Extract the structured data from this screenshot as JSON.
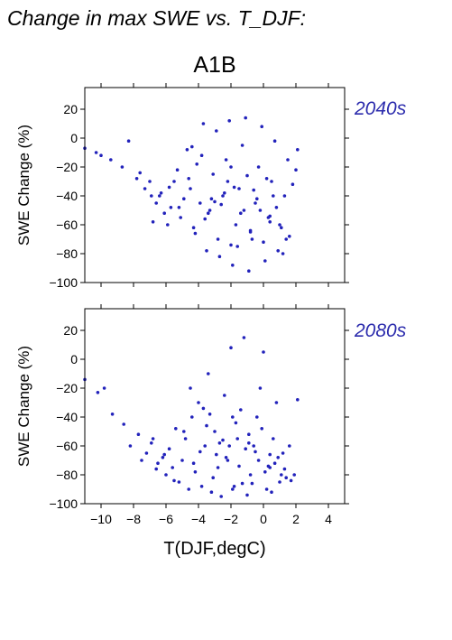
{
  "figure": {
    "title": "Change in max SWE vs. T_DJF:",
    "scenario": "A1B"
  },
  "colors": {
    "points": "#2222bb",
    "period_label": "#2c2cad",
    "axes": "#000000"
  },
  "chart_data": [
    {
      "type": "scatter",
      "period": "2040s",
      "xlabel": "",
      "ylabel": "SWE Change (%)",
      "xlim": [
        -11,
        5
      ],
      "ylim": [
        -100,
        35
      ],
      "yticks": [
        -100,
        -80,
        -60,
        -40,
        -20,
        0,
        20
      ],
      "yticklabels": [
        "−100",
        "−80",
        "−60",
        "−40",
        "−20",
        "0",
        "20"
      ],
      "xticks": [
        -10,
        -8,
        -6,
        -4,
        -2,
        0,
        2,
        4
      ],
      "xticklabels": [],
      "grid": false,
      "x": [
        -11.0,
        -10.3,
        -10.0,
        -9.4,
        -8.7,
        -8.3,
        -7.8,
        -7.3,
        -6.9,
        -6.6,
        -6.3,
        -6.1,
        -5.9,
        -5.7,
        -5.5,
        -5.3,
        -5.1,
        -4.9,
        -4.7,
        -4.5,
        -4.3,
        -4.1,
        -3.9,
        -3.7,
        -3.5,
        -3.3,
        -3.1,
        -2.9,
        -2.7,
        -2.5,
        -2.3,
        -2.1,
        -1.9,
        -1.7,
        -1.5,
        -1.3,
        -1.1,
        -0.9,
        -0.7,
        -0.5,
        -0.3,
        -0.1,
        0.1,
        0.3,
        0.5,
        0.7,
        0.9,
        1.1,
        1.3,
        1.5,
        1.8,
        2.1,
        -7.6,
        -7.0,
        -6.8,
        -6.4,
        -5.8,
        -5.2,
        -4.6,
        -4.2,
        -3.8,
        -3.4,
        -2.8,
        -2.4,
        -2.0,
        -1.6,
        -1.2,
        -0.8,
        -0.4,
        0.0,
        0.4,
        0.8,
        1.2,
        1.6,
        2.0,
        -3.6,
        -3.0,
        -2.2,
        -1.4,
        -0.6,
        0.2,
        1.0,
        -2.6,
        -1.8,
        -1.0,
        -0.2,
        0.6,
        1.4,
        -4.4,
        -3.2,
        -2.0,
        -0.8,
        0.4
      ],
      "y": [
        -7,
        -10,
        -12,
        -15,
        -20,
        -2,
        -28,
        -35,
        -40,
        -45,
        -38,
        -52,
        -60,
        -48,
        -30,
        -22,
        -55,
        -42,
        -8,
        -35,
        -62,
        -18,
        -45,
        10,
        -78,
        -50,
        -25,
        5,
        -82,
        -40,
        -15,
        12,
        -88,
        -60,
        -35,
        -5,
        14,
        -92,
        -70,
        -45,
        -20,
        8,
        -85,
        -55,
        -30,
        -2,
        -78,
        -62,
        -40,
        -15,
        -32,
        -8,
        -24,
        -30,
        -58,
        -40,
        -34,
        -48,
        -28,
        -66,
        -12,
        -52,
        -70,
        -38,
        -20,
        -75,
        -50,
        -65,
        -42,
        -72,
        -58,
        -48,
        -80,
        -68,
        -22,
        -56,
        -44,
        -30,
        -52,
        -36,
        -28,
        -60,
        -46,
        -34,
        -26,
        -50,
        -40,
        -70,
        -6,
        -42,
        -74,
        -64,
        -54
      ],
      "series": []
    },
    {
      "type": "scatter",
      "period": "2080s",
      "xlabel": "T(DJF,degC)",
      "ylabel": "SWE Change (%)",
      "xlim": [
        -11,
        5
      ],
      "ylim": [
        -100,
        35
      ],
      "yticks": [
        -100,
        -80,
        -60,
        -40,
        -20,
        0,
        20
      ],
      "yticklabels": [
        "−100",
        "−80",
        "−60",
        "−40",
        "−20",
        "0",
        "20"
      ],
      "xticks": [
        -10,
        -8,
        -6,
        -4,
        -2,
        0,
        2,
        4
      ],
      "xticklabels": [
        "−10",
        "−8",
        "−6",
        "−4",
        "−2",
        "0",
        "2",
        "4"
      ],
      "grid": false,
      "x": [
        -11.0,
        -10.2,
        -9.8,
        -9.3,
        -8.6,
        -8.2,
        -7.7,
        -7.2,
        -6.8,
        -6.5,
        -6.2,
        -6.0,
        -5.8,
        -5.6,
        -5.4,
        -5.2,
        -5.0,
        -4.8,
        -4.6,
        -4.4,
        -4.2,
        -4.0,
        -3.8,
        -3.6,
        -3.4,
        -3.2,
        -3.0,
        -2.8,
        -2.6,
        -2.4,
        -2.2,
        -2.0,
        -1.8,
        -1.6,
        -1.4,
        -1.2,
        -1.0,
        -0.8,
        -0.6,
        -0.4,
        -0.2,
        0.0,
        0.2,
        0.4,
        0.6,
        0.8,
        1.0,
        1.2,
        1.4,
        1.6,
        1.9,
        2.1,
        -7.5,
        -6.9,
        -6.6,
        -6.1,
        -5.5,
        -4.9,
        -4.3,
        -3.9,
        -3.5,
        -3.1,
        -2.7,
        -2.3,
        -1.9,
        -1.5,
        -1.1,
        -0.7,
        -0.3,
        0.1,
        0.5,
        0.9,
        1.3,
        1.7,
        -3.3,
        -2.5,
        -1.7,
        -0.9,
        -0.1,
        0.7,
        -4.5,
        -2.9,
        -2.1,
        -1.3,
        -0.5,
        0.3,
        1.1,
        -3.7,
        -1.9,
        -0.9,
        0.4
      ],
      "y": [
        -14,
        -23,
        -20,
        -38,
        -45,
        -60,
        -52,
        -65,
        -55,
        -72,
        -68,
        -80,
        -62,
        -75,
        -48,
        -85,
        -70,
        -55,
        -90,
        -40,
        -78,
        -30,
        -88,
        -60,
        -10,
        -92,
        -50,
        -75,
        -95,
        -25,
        -70,
        8,
        -88,
        -55,
        -35,
        15,
        -94,
        -80,
        -60,
        -40,
        -20,
        5,
        -90,
        -75,
        -55,
        -30,
        -85,
        -65,
        -82,
        -60,
        -80,
        -28,
        -70,
        -58,
        -76,
        -66,
        -84,
        -50,
        -72,
        -64,
        -46,
        -82,
        -58,
        -68,
        -90,
        -74,
        -62,
        -86,
        -70,
        -78,
        -92,
        -68,
        -76,
        -84,
        -38,
        -56,
        -44,
        -52,
        -48,
        -72,
        -20,
        -66,
        -60,
        -86,
        -64,
        -74,
        -80,
        -34,
        -40,
        -58,
        -66
      ],
      "series": []
    }
  ]
}
